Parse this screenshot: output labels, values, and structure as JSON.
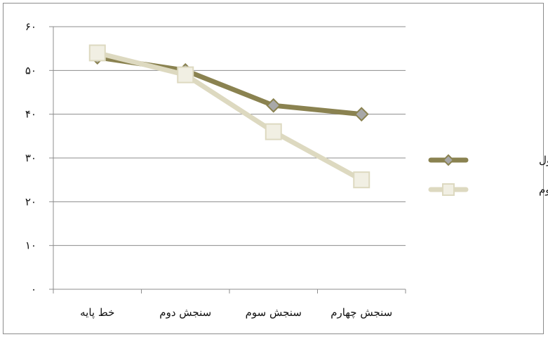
{
  "chart_data": {
    "type": "line",
    "categories": [
      "خط پایه",
      "سنجش دوم",
      "سنجش سوم",
      "سنجش چهارم"
    ],
    "series": [
      {
        "name": "آزمودنی اول",
        "values": [
          53,
          50,
          42,
          40
        ],
        "color": "#8a8250",
        "marker": "diamond"
      },
      {
        "name": "آزمودنی دوم",
        "values": [
          54,
          49,
          36,
          25
        ],
        "color": "#ddd9c0",
        "marker": "square"
      }
    ],
    "ylim": [
      0,
      60
    ],
    "yticks": [
      0,
      10,
      20,
      30,
      40,
      50,
      60
    ],
    "ytick_labels": [
      "۰",
      "۱۰",
      "۲۰",
      "۳۰",
      "۴۰",
      "۵۰",
      "۶۰"
    ],
    "grid": true,
    "legend_position": "right"
  }
}
